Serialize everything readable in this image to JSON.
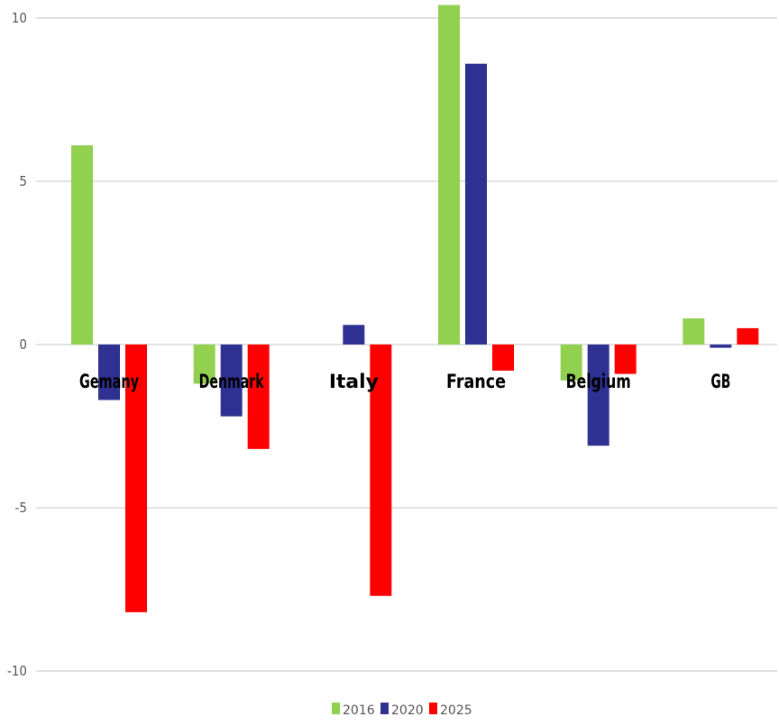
{
  "chart_data": {
    "type": "bar",
    "categories": [
      "Gemany",
      "Denmark",
      "Italy",
      "France",
      "Belgium",
      "GB"
    ],
    "series": [
      {
        "name": "2016",
        "color": "#92d050",
        "values": [
          6.1,
          -1.2,
          0,
          10.4,
          -1.1,
          0.8
        ]
      },
      {
        "name": "2020",
        "color": "#2e3192",
        "values": [
          -1.7,
          -2.2,
          0.6,
          8.6,
          -3.1,
          -0.1
        ]
      },
      {
        "name": "2025",
        "color": "#ff0000",
        "values": [
          -8.2,
          -3.2,
          -7.7,
          -0.8,
          -0.9,
          0.5
        ]
      }
    ],
    "yticks": [
      10,
      5,
      0,
      -5,
      -10
    ],
    "ylim": [
      -10,
      10
    ],
    "grid": true,
    "legend_position": "bottom",
    "title": "",
    "xlabel": "",
    "ylabel": ""
  }
}
